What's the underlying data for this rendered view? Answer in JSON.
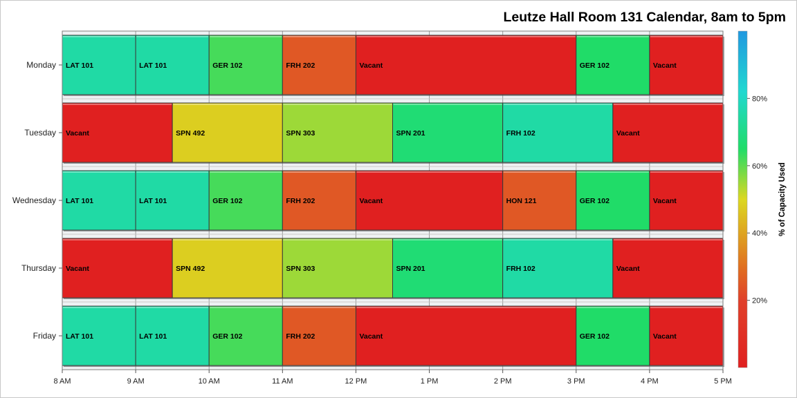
{
  "chart_data": {
    "type": "bar",
    "subtype": "horizontal-stacked-timeline",
    "title": "Leutze Hall Room 131 Calendar, 8am to 5pm",
    "xlabel": "",
    "ylabel": "",
    "x_ticks": [
      "8 AM",
      "9 AM",
      "10 AM",
      "11 AM",
      "12 PM",
      "1 PM",
      "2 PM",
      "3 PM",
      "4 PM",
      "5 PM"
    ],
    "x_range_hours": [
      8,
      17
    ],
    "days": [
      {
        "name": "Monday",
        "blocks": [
          {
            "label": "LAT 101",
            "start": 8,
            "end": 9,
            "capacity_pct": 75
          },
          {
            "label": "LAT 101",
            "start": 9,
            "end": 10,
            "capacity_pct": 75
          },
          {
            "label": "GER 102",
            "start": 10,
            "end": 11,
            "capacity_pct": 62
          },
          {
            "label": "FRH 202",
            "start": 11,
            "end": 12,
            "capacity_pct": 25
          },
          {
            "label": "Vacant",
            "start": 12,
            "end": 15,
            "capacity_pct": 0
          },
          {
            "label": "GER 102",
            "start": 15,
            "end": 16,
            "capacity_pct": 65
          },
          {
            "label": "Vacant",
            "start": 16,
            "end": 17,
            "capacity_pct": 0
          }
        ]
      },
      {
        "name": "Tuesday",
        "blocks": [
          {
            "label": "Vacant",
            "start": 8,
            "end": 9.5,
            "capacity_pct": 0
          },
          {
            "label": "SPN 492",
            "start": 9.5,
            "end": 11,
            "capacity_pct": 48
          },
          {
            "label": "SPN 303",
            "start": 11,
            "end": 12.5,
            "capacity_pct": 55
          },
          {
            "label": "SPN 201",
            "start": 12.5,
            "end": 14,
            "capacity_pct": 67
          },
          {
            "label": "FRH 102",
            "start": 14,
            "end": 15.5,
            "capacity_pct": 75
          },
          {
            "label": "Vacant",
            "start": 15.5,
            "end": 17,
            "capacity_pct": 0
          }
        ]
      },
      {
        "name": "Wednesday",
        "blocks": [
          {
            "label": "LAT 101",
            "start": 8,
            "end": 9,
            "capacity_pct": 75
          },
          {
            "label": "LAT 101",
            "start": 9,
            "end": 10,
            "capacity_pct": 75
          },
          {
            "label": "GER 102",
            "start": 10,
            "end": 11,
            "capacity_pct": 62
          },
          {
            "label": "FRH 202",
            "start": 11,
            "end": 12,
            "capacity_pct": 25
          },
          {
            "label": "Vacant",
            "start": 12,
            "end": 14,
            "capacity_pct": 0
          },
          {
            "label": "HON 121",
            "start": 14,
            "end": 15,
            "capacity_pct": 25
          },
          {
            "label": "GER 102",
            "start": 15,
            "end": 16,
            "capacity_pct": 65
          },
          {
            "label": "Vacant",
            "start": 16,
            "end": 17,
            "capacity_pct": 0
          }
        ]
      },
      {
        "name": "Thursday",
        "blocks": [
          {
            "label": "Vacant",
            "start": 8,
            "end": 9.5,
            "capacity_pct": 0
          },
          {
            "label": "SPN 492",
            "start": 9.5,
            "end": 11,
            "capacity_pct": 48
          },
          {
            "label": "SPN 303",
            "start": 11,
            "end": 12.5,
            "capacity_pct": 55
          },
          {
            "label": "SPN 201",
            "start": 12.5,
            "end": 14,
            "capacity_pct": 67
          },
          {
            "label": "FRH 102",
            "start": 14,
            "end": 15.5,
            "capacity_pct": 75
          },
          {
            "label": "Vacant",
            "start": 15.5,
            "end": 17,
            "capacity_pct": 0
          }
        ]
      },
      {
        "name": "Friday",
        "blocks": [
          {
            "label": "LAT 101",
            "start": 8,
            "end": 9,
            "capacity_pct": 75
          },
          {
            "label": "LAT 101",
            "start": 9,
            "end": 10,
            "capacity_pct": 75
          },
          {
            "label": "GER 102",
            "start": 10,
            "end": 11,
            "capacity_pct": 62
          },
          {
            "label": "FRH 202",
            "start": 11,
            "end": 12,
            "capacity_pct": 25
          },
          {
            "label": "Vacant",
            "start": 12,
            "end": 15,
            "capacity_pct": 0
          },
          {
            "label": "GER 102",
            "start": 15,
            "end": 16,
            "capacity_pct": 65
          },
          {
            "label": "Vacant",
            "start": 16,
            "end": 17,
            "capacity_pct": 0
          }
        ]
      }
    ],
    "colorbar": {
      "title": "% of Capacity Used",
      "range": [
        0,
        100
      ],
      "ticks": [
        20,
        40,
        60,
        80
      ],
      "tick_labels": [
        "20%",
        "40%",
        "60%",
        "80%"
      ],
      "colors": [
        {
          "at": 0,
          "color": "#e02020"
        },
        {
          "at": 20,
          "color": "#e0402a"
        },
        {
          "at": 30,
          "color": "#e07020"
        },
        {
          "at": 50,
          "color": "#dcd820"
        },
        {
          "at": 65,
          "color": "#20dc68"
        },
        {
          "at": 82,
          "color": "#20d8d0"
        },
        {
          "at": 100,
          "color": "#2098e0"
        }
      ]
    },
    "grid": true,
    "legend": "right (color bar)"
  }
}
